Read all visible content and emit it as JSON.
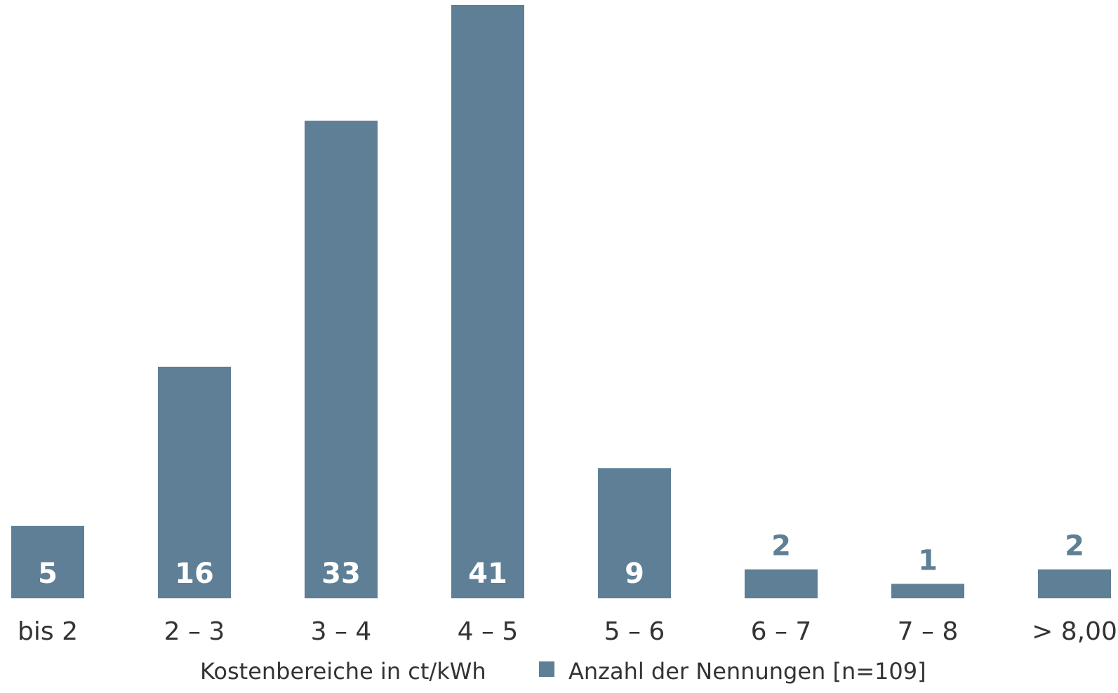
{
  "chart_data": {
    "type": "bar",
    "categories": [
      "bis 2",
      "2 – 3",
      "3 – 4",
      "4 – 5",
      "5 – 6",
      "6 – 7",
      "7 – 8",
      "> 8,00"
    ],
    "series": [
      {
        "name": "Anzahl der Nennungen [n=109]",
        "values": [
          5,
          16,
          33,
          41,
          9,
          2,
          1,
          2
        ]
      }
    ],
    "xlabel": "Kostenbereiche in ct/kWh",
    "ylabel": "",
    "ylim": [
      0,
      41
    ],
    "grid": false,
    "legend": "bottom",
    "colors": {
      "bar": "#5e7f95",
      "label_inside": "#ffffff",
      "label_outside": "#5e7f95",
      "text": "#333333"
    }
  }
}
